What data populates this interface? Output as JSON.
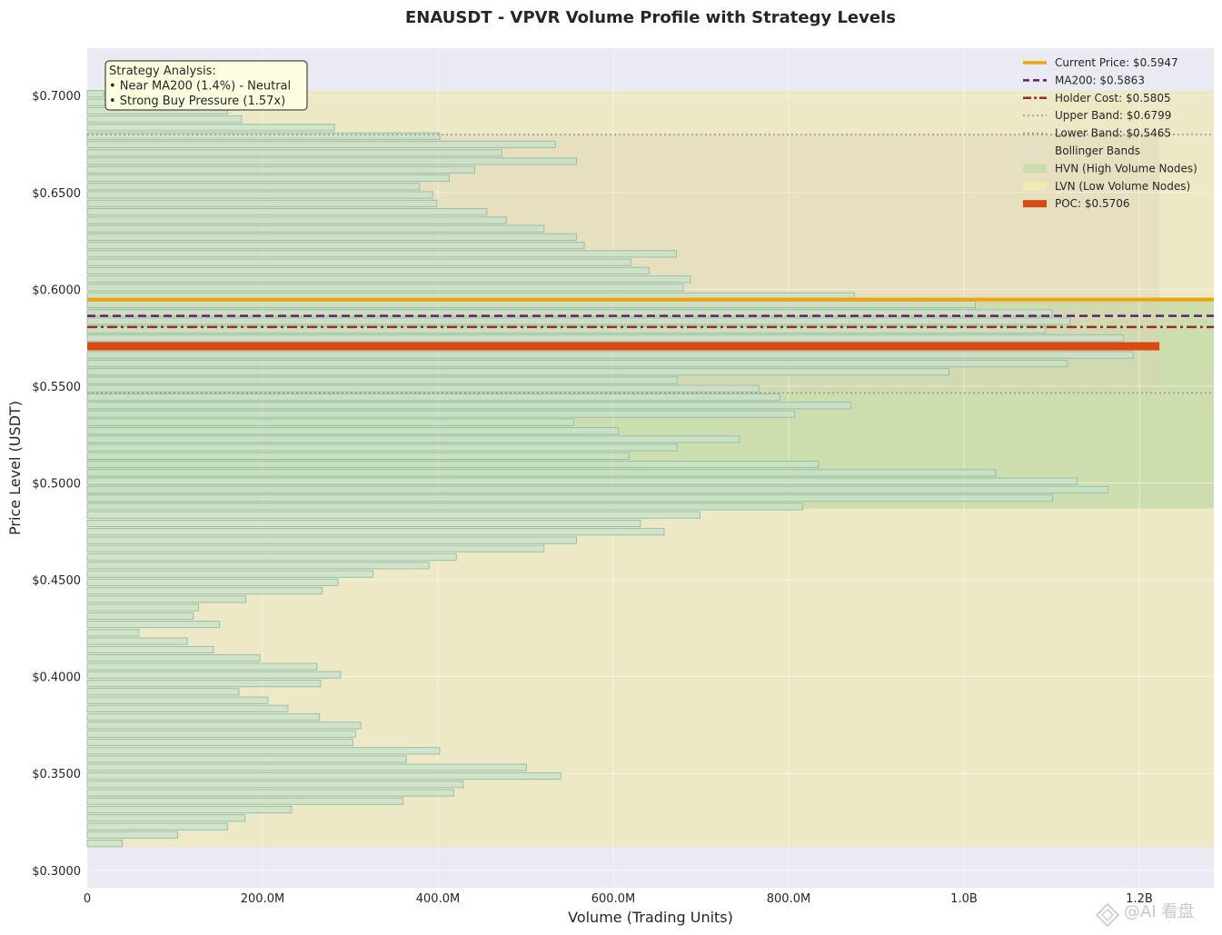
{
  "chart_data": {
    "type": "bar",
    "orientation": "horizontal",
    "title": "ENAUSDT - VPVR Volume Profile with Strategy Levels",
    "xlabel": "Volume (Trading Units)",
    "ylabel": "Price Level (USDT)",
    "xlim": [
      0,
      1285000000
    ],
    "ylim": [
      0.291,
      0.7245
    ],
    "x_ticks": [
      {
        "value": 0,
        "label": "0"
      },
      {
        "value": 200000000,
        "label": "200.0M"
      },
      {
        "value": 400000000,
        "label": "400.0M"
      },
      {
        "value": 600000000,
        "label": "600.0M"
      },
      {
        "value": 800000000,
        "label": "800.0M"
      },
      {
        "value": 1000000000,
        "label": "1.0B"
      },
      {
        "value": 1200000000,
        "label": "1.2B"
      }
    ],
    "y_ticks": [
      {
        "value": 0.3,
        "label": "$0.3000"
      },
      {
        "value": 0.35,
        "label": "$0.3500"
      },
      {
        "value": 0.4,
        "label": "$0.4000"
      },
      {
        "value": 0.45,
        "label": "$0.4500"
      },
      {
        "value": 0.5,
        "label": "$0.5000"
      },
      {
        "value": 0.55,
        "label": "$0.5500"
      },
      {
        "value": 0.6,
        "label": "$0.6000"
      },
      {
        "value": 0.65,
        "label": "$0.6500"
      },
      {
        "value": 0.7,
        "label": "$0.7000"
      }
    ],
    "grid": true,
    "legend_position": "top-right",
    "bin_price_low": 0.3118,
    "bin_price_high": 0.7027,
    "bins": [
      {
        "price": 0.3139,
        "volume": 40000000,
        "zone": "lvn"
      },
      {
        "price": 0.3183,
        "volume": 103000000,
        "zone": "lvn"
      },
      {
        "price": 0.3226,
        "volume": 160000000,
        "zone": "lvn"
      },
      {
        "price": 0.327,
        "volume": 180000000,
        "zone": "lvn"
      },
      {
        "price": 0.3313,
        "volume": 233000000,
        "zone": "lvn"
      },
      {
        "price": 0.3357,
        "volume": 360000000,
        "zone": "lvn"
      },
      {
        "price": 0.34,
        "volume": 418000000,
        "zone": "lvn"
      },
      {
        "price": 0.3444,
        "volume": 429000000,
        "zone": "lvn"
      },
      {
        "price": 0.3487,
        "volume": 540000000,
        "zone": "lvn"
      },
      {
        "price": 0.3531,
        "volume": 501000000,
        "zone": "lvn"
      },
      {
        "price": 0.3574,
        "volume": 364000000,
        "zone": "lvn"
      },
      {
        "price": 0.3617,
        "volume": 402000000,
        "zone": "lvn"
      },
      {
        "price": 0.3661,
        "volume": 303000000,
        "zone": "lvn"
      },
      {
        "price": 0.3704,
        "volume": 306000000,
        "zone": "lvn"
      },
      {
        "price": 0.3748,
        "volume": 312000000,
        "zone": "lvn"
      },
      {
        "price": 0.3791,
        "volume": 265000000,
        "zone": "lvn"
      },
      {
        "price": 0.3835,
        "volume": 229000000,
        "zone": "lvn"
      },
      {
        "price": 0.3878,
        "volume": 206000000,
        "zone": "lvn"
      },
      {
        "price": 0.3922,
        "volume": 173000000,
        "zone": "lvn"
      },
      {
        "price": 0.3965,
        "volume": 266000000,
        "zone": "lvn"
      },
      {
        "price": 0.4009,
        "volume": 289000000,
        "zone": "lvn"
      },
      {
        "price": 0.4052,
        "volume": 262000000,
        "zone": "lvn"
      },
      {
        "price": 0.4096,
        "volume": 197000000,
        "zone": "lvn"
      },
      {
        "price": 0.4139,
        "volume": 144000000,
        "zone": "lvn"
      },
      {
        "price": 0.4183,
        "volume": 114000000,
        "zone": "lvn"
      },
      {
        "price": 0.4226,
        "volume": 59000000,
        "zone": "lvn"
      },
      {
        "price": 0.427,
        "volume": 151000000,
        "zone": "lvn"
      },
      {
        "price": 0.4313,
        "volume": 121000000,
        "zone": "lvn"
      },
      {
        "price": 0.4357,
        "volume": 127000000,
        "zone": "lvn"
      },
      {
        "price": 0.44,
        "volume": 181000000,
        "zone": "lvn"
      },
      {
        "price": 0.4443,
        "volume": 268000000,
        "zone": "lvn"
      },
      {
        "price": 0.4487,
        "volume": 286000000,
        "zone": "lvn"
      },
      {
        "price": 0.453,
        "volume": 326000000,
        "zone": "lvn"
      },
      {
        "price": 0.4574,
        "volume": 390000000,
        "zone": "lvn"
      },
      {
        "price": 0.4617,
        "volume": 421000000,
        "zone": "lvn"
      },
      {
        "price": 0.4661,
        "volume": 521000000,
        "zone": "lvn"
      },
      {
        "price": 0.4704,
        "volume": 558000000,
        "zone": "lvn"
      },
      {
        "price": 0.4748,
        "volume": 658000000,
        "zone": "lvn"
      },
      {
        "price": 0.4791,
        "volume": 631000000,
        "zone": "lvn"
      },
      {
        "price": 0.4835,
        "volume": 699000000,
        "zone": "lvn"
      },
      {
        "price": 0.4878,
        "volume": 816000000,
        "zone": "lvn"
      },
      {
        "price": 0.4922,
        "volume": 1101000000,
        "zone": "hvn"
      },
      {
        "price": 0.4965,
        "volume": 1164000000,
        "zone": "hvn"
      },
      {
        "price": 0.5009,
        "volume": 1129000000,
        "zone": "hvn"
      },
      {
        "price": 0.5052,
        "volume": 1036000000,
        "zone": "hvn"
      },
      {
        "price": 0.5096,
        "volume": 834000000,
        "zone": "hvn"
      },
      {
        "price": 0.5139,
        "volume": 618000000,
        "zone": "hvn"
      },
      {
        "price": 0.5183,
        "volume": 673000000,
        "zone": "hvn"
      },
      {
        "price": 0.5226,
        "volume": 744000000,
        "zone": "hvn"
      },
      {
        "price": 0.5269,
        "volume": 606000000,
        "zone": "hvn"
      },
      {
        "price": 0.5313,
        "volume": 555000000,
        "zone": "hvn"
      },
      {
        "price": 0.5356,
        "volume": 807000000,
        "zone": "hvn"
      },
      {
        "price": 0.54,
        "volume": 871000000,
        "zone": "hvn"
      },
      {
        "price": 0.5443,
        "volume": 790000000,
        "zone": "hvn"
      },
      {
        "price": 0.5487,
        "volume": 766000000,
        "zone": "hvn"
      },
      {
        "price": 0.553,
        "volume": 673000000,
        "zone": "hvn"
      },
      {
        "price": 0.5574,
        "volume": 983000000,
        "zone": "hvn"
      },
      {
        "price": 0.5617,
        "volume": 1118000000,
        "zone": "hvn"
      },
      {
        "price": 0.5661,
        "volume": 1193000000,
        "zone": "hvn"
      },
      {
        "price": 0.5704,
        "volume": 1223000000,
        "zone": "poc"
      },
      {
        "price": 0.5748,
        "volume": 1182000000,
        "zone": "hvn"
      },
      {
        "price": 0.5791,
        "volume": 1093000000,
        "zone": "hvn"
      },
      {
        "price": 0.5835,
        "volume": 1121000000,
        "zone": "hvn"
      },
      {
        "price": 0.5878,
        "volume": 1101000000,
        "zone": "hvn"
      },
      {
        "price": 0.5922,
        "volume": 1013000000,
        "zone": "hvn"
      },
      {
        "price": 0.5965,
        "volume": 875000000,
        "zone": "lvn"
      },
      {
        "price": 0.6009,
        "volume": 680000000,
        "zone": "lvn"
      },
      {
        "price": 0.6052,
        "volume": 688000000,
        "zone": "lvn"
      },
      {
        "price": 0.6096,
        "volume": 641000000,
        "zone": "lvn"
      },
      {
        "price": 0.6139,
        "volume": 620000000,
        "zone": "lvn"
      },
      {
        "price": 0.6183,
        "volume": 672000000,
        "zone": "lvn"
      },
      {
        "price": 0.6226,
        "volume": 567000000,
        "zone": "lvn"
      },
      {
        "price": 0.627,
        "volume": 558000000,
        "zone": "lvn"
      },
      {
        "price": 0.6313,
        "volume": 521000000,
        "zone": "lvn"
      },
      {
        "price": 0.6356,
        "volume": 478000000,
        "zone": "lvn"
      },
      {
        "price": 0.64,
        "volume": 456000000,
        "zone": "lvn"
      },
      {
        "price": 0.6443,
        "volume": 399000000,
        "zone": "lvn"
      },
      {
        "price": 0.6487,
        "volume": 394000000,
        "zone": "lvn"
      },
      {
        "price": 0.653,
        "volume": 379000000,
        "zone": "lvn"
      },
      {
        "price": 0.6574,
        "volume": 413000000,
        "zone": "lvn"
      },
      {
        "price": 0.6617,
        "volume": 442000000,
        "zone": "lvn"
      },
      {
        "price": 0.6661,
        "volume": 558000000,
        "zone": "lvn"
      },
      {
        "price": 0.6704,
        "volume": 473000000,
        "zone": "lvn"
      },
      {
        "price": 0.6748,
        "volume": 534000000,
        "zone": "lvn"
      },
      {
        "price": 0.6791,
        "volume": 402000000,
        "zone": "lvn"
      },
      {
        "price": 0.6835,
        "volume": 282000000,
        "zone": "lvn"
      },
      {
        "price": 0.6878,
        "volume": 176000000,
        "zone": "lvn"
      },
      {
        "price": 0.6922,
        "volume": 160000000,
        "zone": "lvn"
      },
      {
        "price": 0.6965,
        "volume": 115000000,
        "zone": "lvn"
      },
      {
        "price": 0.7009,
        "volume": 19000000,
        "zone": "lvn"
      }
    ],
    "hvn_range": [
      0.4868,
      0.5948
    ],
    "levels": {
      "current_price": 0.5947,
      "ma200": 0.5863,
      "holder_cost": 0.5805,
      "upper_band": 0.6799,
      "lower_band": 0.5465,
      "poc": 0.5706
    },
    "legend": [
      {
        "key": "current",
        "label": "Current Price: $0.5947",
        "style": "solid",
        "color": "#f0a30a"
      },
      {
        "key": "ma200",
        "label": "MA200: $0.5863",
        "style": "dashed",
        "color": "#6a1b6e"
      },
      {
        "key": "holder",
        "label": "Holder Cost: $0.5805",
        "style": "dashdot",
        "color": "#9c2a2a"
      },
      {
        "key": "upper",
        "label": "Upper Band: $0.6799",
        "style": "dotted",
        "color": "#999999"
      },
      {
        "key": "lower",
        "label": "Lower Band: $0.5465",
        "style": "dotted",
        "color": "#999999"
      },
      {
        "key": "bollinger",
        "label": "Bollinger Bands",
        "style": "patch",
        "color": "#e3dfc8"
      },
      {
        "key": "hvn",
        "label": "HVN (High Volume Nodes)",
        "style": "patch",
        "color": "#c6dca8"
      },
      {
        "key": "lvn",
        "label": "LVN (Low Volume Nodes)",
        "style": "patch",
        "color": "#f3eab0"
      },
      {
        "key": "poc",
        "label": "POC: $0.5706",
        "style": "patch",
        "color": "#d84a12"
      }
    ],
    "annotation": {
      "lines": [
        "Strategy Analysis:",
        "• Near MA200 (1.4%) - Neutral",
        "• Strong Buy Pressure (1.57x)"
      ]
    },
    "watermark": "@AI 看盘"
  },
  "colors": {
    "plot_bg": "#eaeaf2",
    "lvn_zone": "#ede9c6",
    "hvn_zone": "#ccdeae",
    "bollinger_zone": "#d9d2b4",
    "bar_fill": "#c7e0cb",
    "bar_stroke": "#9cbfa6",
    "poc": "#d84a12",
    "current_price": "#f0a30a",
    "ma200": "#6a1b6e",
    "holder_cost": "#9c2a2a",
    "band_line": "#999999",
    "annotation_bg": "#fdfde0"
  }
}
